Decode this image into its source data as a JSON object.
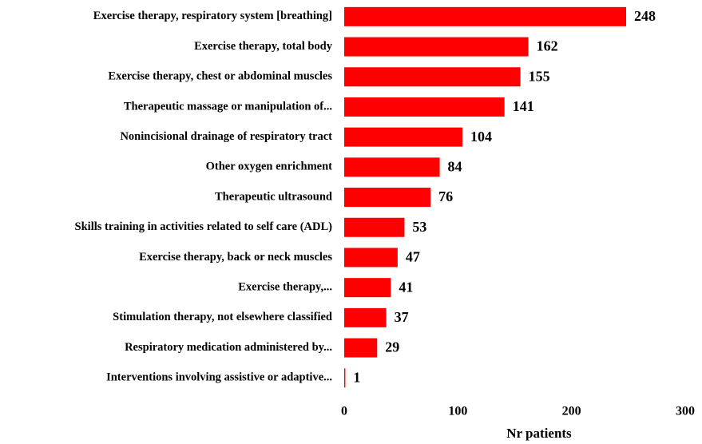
{
  "chart_data": {
    "type": "hbar",
    "categories": [
      "Exercise therapy, respiratory system [breathing]",
      "Exercise therapy, total body",
      "Exercise therapy, chest or abdominal muscles",
      "Therapeutic massage or manipulation of...",
      "Nonincisional drainage of respiratory tract",
      "Other oxygen enrichment",
      "Therapeutic ultrasound",
      "Skills training in activities related to self care (ADL)",
      "Exercise therapy, back or neck muscles",
      "Exercise therapy,...",
      "Stimulation therapy, not elsewhere classified",
      "Respiratory medication administered by...",
      "Interventions involving assistive or adaptive..."
    ],
    "values": [
      248,
      162,
      155,
      141,
      104,
      84,
      76,
      53,
      47,
      41,
      37,
      29,
      1
    ],
    "color": "#ff0000",
    "xlabel": "Nr patients",
    "xlim": [
      0,
      300
    ],
    "xticks": [
      0,
      100,
      200,
      300
    ]
  }
}
